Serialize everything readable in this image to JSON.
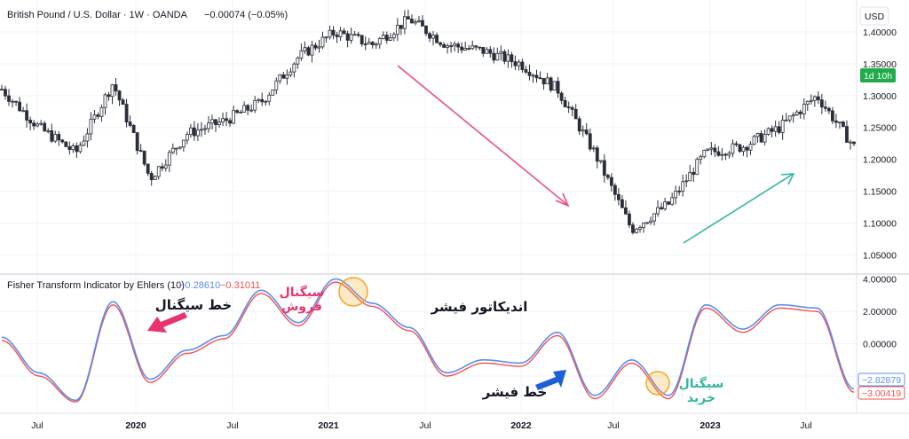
{
  "header": {
    "symbol": "British Pound / U.S. Dollar · 1W · OANDA",
    "change": "−0.00074 (−0.05%)"
  },
  "price_axis": {
    "currency": "USD",
    "countdown": "1d 10h",
    "ticks": [
      "1.40000",
      "1.35000",
      "1.30000",
      "1.25000",
      "1.20000",
      "1.15000",
      "1.10000",
      "1.05000"
    ]
  },
  "indicator": {
    "title": "Fisher Transform Indicator by Ehlers (10)",
    "fish_value": "−0.28610",
    "trigger_value": "−0.31011",
    "ticks": [
      "4.00000",
      "2.00000",
      "0.00000",
      "−2.00000"
    ],
    "fish_label": "−2.82879",
    "trigger_label": "−3.00419"
  },
  "time_axis": [
    "Jul",
    "2020",
    "Jul",
    "2021",
    "Jul",
    "2022",
    "Jul",
    "2023",
    "Jul"
  ],
  "annotations": {
    "signal_line": "خط سیگنال",
    "sell_signal_1": "سیگنال",
    "sell_signal_2": "فروش",
    "fisher_indicator": "اندیکاتور فیشر",
    "fisher_line": "خط فیشر",
    "buy_signal_1": "سیگنال",
    "buy_signal_2": "خرید"
  },
  "colors": {
    "up": "#26a69a",
    "down": "#ef5350",
    "candle": "#2a2e39",
    "fish": "#5b8def",
    "trigger": "#ef5350",
    "countdown_bg": "#22ab4d",
    "sell_arrow": "#e8517a",
    "buy_arrow": "#35b5a0",
    "pointer_pink": "#e8336e",
    "pointer_blue": "#1f5fd6",
    "circle": "#f5a623"
  },
  "chart_data": [
    {
      "type": "candlestick",
      "title": "British Pound / U.S. Dollar · 1W · OANDA",
      "ylabel": "USD",
      "ylim": [
        1.02,
        1.45
      ],
      "x": [
        "2019-04",
        "2019-07",
        "2019-10",
        "2020-01",
        "2020-03",
        "2020-04",
        "2020-07",
        "2020-10",
        "2021-01",
        "2021-02",
        "2021-04",
        "2021-06",
        "2021-07",
        "2021-10",
        "2022-01",
        "2022-04",
        "2022-07",
        "2022-09",
        "2022-10",
        "2022-12",
        "2023-01",
        "2023-04",
        "2023-07",
        "2023-10"
      ],
      "close": [
        1.31,
        1.25,
        1.21,
        1.32,
        1.17,
        1.24,
        1.26,
        1.29,
        1.36,
        1.4,
        1.38,
        1.42,
        1.38,
        1.37,
        1.35,
        1.31,
        1.21,
        1.09,
        1.13,
        1.21,
        1.22,
        1.25,
        1.3,
        1.22
      ]
    },
    {
      "type": "line",
      "title": "Fisher Transform Indicator by Ehlers (10)",
      "ylim": [
        -4.3,
        4.3
      ],
      "x": [
        "2019-04",
        "2019-07",
        "2019-10",
        "2020-01",
        "2020-03",
        "2020-04",
        "2020-07",
        "2020-10",
        "2021-01",
        "2021-02",
        "2021-04",
        "2021-06",
        "2021-07",
        "2021-10",
        "2022-01",
        "2022-04",
        "2022-07",
        "2022-09",
        "2022-10",
        "2022-12",
        "2023-01",
        "2023-04",
        "2023-07",
        "2023-10"
      ],
      "series": [
        {
          "values": [
            0.4,
            -1.8,
            -3.5,
            2.6,
            -2.2,
            -0.4,
            0.5,
            3.3,
            1.3,
            4.0,
            2.5,
            1.0,
            -1.8,
            -1.0,
            -1.2,
            0.7,
            -3.2,
            -1.0,
            -3.2,
            2.4,
            0.9,
            2.4,
            2.2,
            -2.8
          ]
        },
        {
          "values": [
            0.2,
            -2.0,
            -3.6,
            2.4,
            -2.4,
            -0.6,
            0.3,
            3.1,
            1.1,
            3.8,
            2.3,
            0.8,
            -2.0,
            -1.2,
            -1.4,
            0.5,
            -3.4,
            -1.2,
            -3.4,
            2.2,
            0.7,
            2.2,
            2.0,
            -3.0
          ]
        }
      ]
    }
  ]
}
